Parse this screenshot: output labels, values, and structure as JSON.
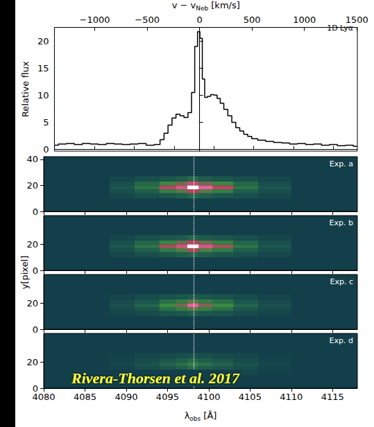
{
  "chart_data": [
    {
      "type": "line",
      "title": "1D Lyα",
      "ylabel": "Relative flux",
      "x2label": [
        {
          "text": "v − v"
        },
        {
          "text": "Neb",
          "sub": true
        },
        {
          "text": " [km/s]"
        }
      ],
      "xlim": [
        4080,
        4118
      ],
      "xticks": [
        4080,
        4085,
        4090,
        4095,
        4100,
        4105,
        4110,
        4115
      ],
      "x2lim": [
        -1385,
        1505
      ],
      "x2ticks": [
        {
          "value": -1000,
          "label": "−1000"
        },
        {
          "value": -500,
          "label": "−500"
        },
        0,
        500,
        1000,
        1500
      ],
      "ylim": [
        -0.3,
        22.5
      ],
      "yticks": [
        0,
        5,
        10,
        15,
        20
      ],
      "tick_labels": "y",
      "color": "#000000",
      "line_style": "steps",
      "reference_x": 4098.2,
      "x": [
        4080,
        4081,
        4082,
        4083,
        4084,
        4085,
        4086,
        4087,
        4088,
        4089,
        4090,
        4091,
        4092,
        4093,
        4093.5,
        4094,
        4094.5,
        4095,
        4095.5,
        4096,
        4096.5,
        4097,
        4097.4,
        4097.8,
        4098.1,
        4098.4,
        4098.7,
        4099.0,
        4099.4,
        4099.8,
        4100.2,
        4100.6,
        4101.0,
        4101.5,
        4102,
        4102.5,
        4103,
        4103.5,
        4104,
        4104.5,
        4105,
        4106,
        4107,
        4108,
        4109,
        4110,
        4111,
        4112,
        4113,
        4114,
        4115,
        4116,
        4117,
        4118
      ],
      "values": [
        0.8,
        1.0,
        1.1,
        0.9,
        1.1,
        1.0,
        0.9,
        1.1,
        1.0,
        0.9,
        1.0,
        1.1,
        0.8,
        0.9,
        1.8,
        3.0,
        4.5,
        5.8,
        6.5,
        6.2,
        5.9,
        6.8,
        10.5,
        19.0,
        21.7,
        20.5,
        13.0,
        9.6,
        9.8,
        10.1,
        10.0,
        9.4,
        8.5,
        7.4,
        6.2,
        5.0,
        4.0,
        3.4,
        2.8,
        2.4,
        2.0,
        1.7,
        1.5,
        1.3,
        1.2,
        1.0,
        1.1,
        0.9,
        1.0,
        0.8,
        0.9,
        0.7,
        0.8,
        0.6
      ]
    },
    {
      "type": "heatmap",
      "title": "Exp. a",
      "ylim": [
        0,
        42
      ],
      "yticks": [
        0,
        20,
        40
      ],
      "xlim": [
        4080,
        4118
      ],
      "xticks": [
        4080,
        4085,
        4090,
        4095,
        4100,
        4105,
        4110,
        4115
      ],
      "tick_labels": "y",
      "reference_x": 4098.2,
      "color_range": [
        0,
        10
      ],
      "x_edges": [
        4088,
        4091,
        4094,
        4096,
        4097.4,
        4098.8,
        4100.5,
        4103,
        4106,
        4110
      ],
      "y_edges": [
        10,
        14,
        17,
        20,
        23,
        27
      ],
      "intensity": [
        [
          0.5,
          1,
          1.5,
          2,
          2.5,
          2,
          1.5,
          1,
          0.5
        ],
        [
          1,
          2,
          3.5,
          4.5,
          6,
          4.5,
          3.5,
          2,
          1
        ],
        [
          1.5,
          3,
          6,
          7,
          10,
          7.5,
          6,
          3,
          1.5
        ],
        [
          1,
          2.5,
          4,
          5,
          6.5,
          5,
          4,
          2.5,
          1
        ],
        [
          0.5,
          1,
          1.5,
          2,
          2.5,
          2,
          1.5,
          1,
          0.5
        ]
      ]
    },
    {
      "type": "heatmap",
      "title": "Exp. b",
      "ylim": [
        0,
        42
      ],
      "yticks": [
        0,
        20
      ],
      "ylabel": "y[pixel]",
      "xlim": [
        4080,
        4118
      ],
      "xticks": [
        4080,
        4085,
        4090,
        4095,
        4100,
        4105,
        4110,
        4115
      ],
      "tick_labels": "y",
      "reference_x": 4098.2,
      "color_range": [
        0,
        10
      ],
      "x_edges": [
        4088,
        4091,
        4094,
        4096,
        4097.4,
        4098.8,
        4100.5,
        4103,
        4106,
        4110
      ],
      "y_edges": [
        10,
        14,
        17,
        20,
        23,
        27
      ],
      "intensity": [
        [
          0.5,
          1,
          1.5,
          2,
          2.3,
          2,
          1.5,
          1,
          0.5
        ],
        [
          1,
          2,
          3.3,
          4.3,
          5.8,
          4.3,
          3.3,
          2,
          1
        ],
        [
          1.5,
          3,
          5.6,
          6.8,
          9.8,
          7,
          5.5,
          3,
          1.5
        ],
        [
          1,
          2.3,
          3.8,
          4.8,
          6,
          4.8,
          3.6,
          2.3,
          1
        ],
        [
          0.5,
          1,
          1.5,
          1.8,
          2.3,
          1.8,
          1.5,
          1,
          0.5
        ]
      ]
    },
    {
      "type": "heatmap",
      "title": "Exp. c",
      "ylim": [
        0,
        42
      ],
      "yticks": [
        0,
        20
      ],
      "xlim": [
        4080,
        4118
      ],
      "xticks": [
        4080,
        4085,
        4090,
        4095,
        4100,
        4105,
        4110,
        4115
      ],
      "tick_labels": "y",
      "reference_x": 4098.2,
      "color_range": [
        0,
        10
      ],
      "x_edges": [
        4088,
        4091,
        4094,
        4096,
        4097.4,
        4098.8,
        4100.5,
        4103,
        4106,
        4110
      ],
      "y_edges": [
        10,
        14,
        17,
        20,
        23,
        27
      ],
      "intensity": [
        [
          0.3,
          0.8,
          1.2,
          1.5,
          2,
          1.5,
          1.2,
          0.8,
          0.3
        ],
        [
          0.8,
          1.5,
          2.8,
          3.5,
          4.5,
          3.5,
          2.8,
          1.5,
          0.8
        ],
        [
          1,
          2.3,
          4,
          5,
          7.5,
          5.2,
          4,
          2.3,
          1
        ],
        [
          0.8,
          1.5,
          2.8,
          3.5,
          4.5,
          3.5,
          2.8,
          1.5,
          0.8
        ],
        [
          0.3,
          0.8,
          1.2,
          1.5,
          1.8,
          1.5,
          1.2,
          0.8,
          0.3
        ]
      ]
    },
    {
      "type": "heatmap",
      "title": "Exp. d",
      "ylim": [
        0,
        42
      ],
      "yticks": [
        0,
        20
      ],
      "xlim": [
        4080,
        4118
      ],
      "xticks": [
        4080,
        4085,
        4090,
        4095,
        4100,
        4105,
        4110,
        4115
      ],
      "xlabel": [
        {
          "text": "λ"
        },
        {
          "text": "obs",
          "sub": true
        },
        {
          "text": " [Å]"
        }
      ],
      "annotation": "Rivera-Thorsen et al. 2017",
      "reference_x": 4098.2,
      "color_range": [
        0,
        10
      ],
      "x_edges": [
        4088,
        4091,
        4094,
        4096,
        4097.4,
        4098.8,
        4100.5,
        4103,
        4106,
        4110
      ],
      "y_edges": [
        10,
        14,
        17,
        20,
        23,
        27
      ],
      "intensity": [
        [
          0.2,
          0.5,
          0.8,
          1,
          1.2,
          1,
          0.8,
          0.5,
          0.2
        ],
        [
          0.4,
          0.9,
          1.5,
          2,
          2.5,
          2,
          1.5,
          0.9,
          0.4
        ],
        [
          0.5,
          1.2,
          2.2,
          2.8,
          3.5,
          2.8,
          2.2,
          1.2,
          0.5
        ],
        [
          0.4,
          0.9,
          1.5,
          2,
          2.5,
          2,
          1.5,
          0.9,
          0.4
        ],
        [
          0.2,
          0.5,
          0.8,
          1,
          1.2,
          1,
          0.8,
          0.5,
          0.2
        ]
      ]
    }
  ]
}
